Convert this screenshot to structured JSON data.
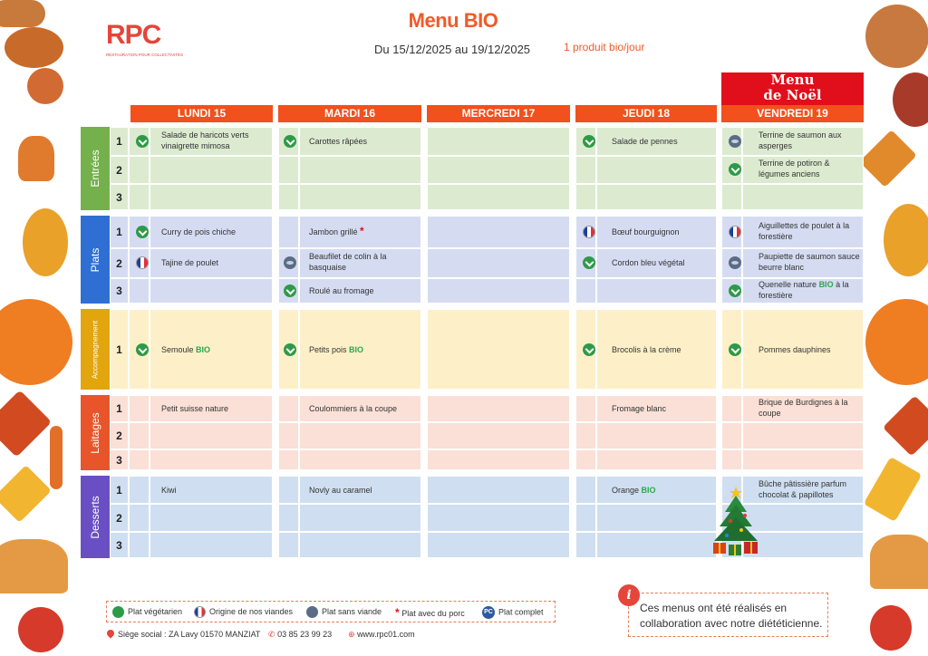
{
  "header": {
    "logo": "RPC",
    "logo_sub": "RESTAURATION POUR COLLECTIVITÉS",
    "title": "Menu BIO",
    "dates": "Du 15/12/2025 au 19/12/2025",
    "bio_note": "1 produit bio/jour",
    "christmas_banner": [
      "Menu",
      "de Noël"
    ]
  },
  "days": [
    "LUNDI 15",
    "MARDI 16",
    "MERCREDI 17",
    "JEUDI 18",
    "VENDREDI 19"
  ],
  "sections": [
    {
      "name": "Entrées",
      "color": "#74b04c"
    },
    {
      "name": "Plats",
      "color": "#2f6fd3"
    },
    {
      "name": "Accompagnement",
      "color": "#e2a50e"
    },
    {
      "name": "Laitages",
      "color": "#e8552a"
    },
    {
      "name": "Desserts",
      "color": "#6a4fc4"
    }
  ],
  "menu": {
    "monday": {
      "e1": "Salade de haricots verts vinaigrette mimosa",
      "p1": "Curry de pois chiche",
      "p2": "Tajine de poulet",
      "a1": "Semoule",
      "l1": "Petit suisse nature",
      "d1": "Kiwi"
    },
    "tuesday": {
      "e1": "Carottes râpées",
      "p1": "Jambon grillé",
      "p2": "Beaufilet de colin à la basquaise",
      "p3": "Roulé au fromage",
      "a1": "Petits pois",
      "l1": "Coulommiers à la coupe",
      "d1": "Novly au caramel"
    },
    "thursday": {
      "e1": "Salade de pennes",
      "p1": "Bœuf bourguignon",
      "p2": "Cordon bleu végétal",
      "a1": "Brocolis à la crème",
      "l1": "Fromage blanc",
      "d1": "Orange"
    },
    "friday": {
      "e1": "Terrine de saumon aux asperges",
      "e2": "Terrine de potiron & légumes anciens",
      "p1": "Aiguillettes de poulet à la forestière",
      "p2": "Paupiette de saumon sauce beurre blanc",
      "p3_a": "Quenelle nature",
      "p3_b": "à la forestière",
      "a1": "Pommes dauphines",
      "l1": "Brique de Burdignes à la coupe",
      "d1": "Bûche pâtissière parfum chocolat & papillotes"
    },
    "bio_tag": "BIO",
    "pork_mark": "*"
  },
  "legend": {
    "veg": "Plat végétarien",
    "origin": "Origine de nos viandes",
    "no_meat": "Plat sans viande",
    "pork": "Plat avec du porc",
    "complete": "Plat complet",
    "complete_badge": "PC"
  },
  "footer": {
    "address": "Siège social : ZA Lavy 01570 MANZIAT",
    "phone": "03 85 23 99 23",
    "web": "www.rpc01.com"
  },
  "note": "Ces menus ont été réalisés en collaboration avec notre diététicienne.",
  "note_icon": "i"
}
